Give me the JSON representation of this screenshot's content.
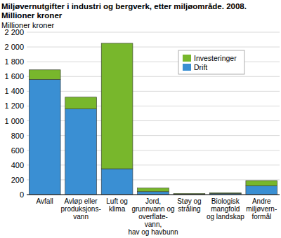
{
  "chart_data": {
    "type": "bar",
    "title": "Miljøvernutgifter i industri og bergverk, etter miljøområde. 2008. Millioner kroner",
    "y_label": "Millioner kroner",
    "stacked": true,
    "grid": true,
    "legend": "upper right",
    "categories": [
      "Avfall",
      "Avløp eller\nproduksjons-\nvann",
      "Luft og\nklima",
      "Jord,\ngrunnvann og\noverflate-\nvann,\nhav og havbunn",
      "Støy og\nstråling",
      "Biologisk\nmangfold\nog landskap",
      "Andre\nmiljøvern-\nformål"
    ],
    "series": [
      {
        "name": "Drift",
        "color": "#3a8fd3",
        "values": [
          1560,
          1160,
          350,
          40,
          5,
          15,
          120
        ]
      },
      {
        "name": "Investeringer",
        "color": "#78b72c",
        "values": [
          130,
          160,
          1700,
          50,
          10,
          10,
          70
        ]
      }
    ],
    "ylim": [
      0,
      2200
    ],
    "yticks": [
      0,
      200,
      400,
      600,
      800,
      {
        "value": 1000,
        "label": "1 000"
      },
      {
        "value": 1200,
        "label": "1 200"
      },
      {
        "value": 1400,
        "label": "1 400"
      },
      {
        "value": 1600,
        "label": "1 600"
      },
      {
        "value": 1800,
        "label": "1 800"
      },
      {
        "value": 2000,
        "label": "2 000"
      },
      {
        "value": 2200,
        "label": "2 200"
      }
    ]
  }
}
